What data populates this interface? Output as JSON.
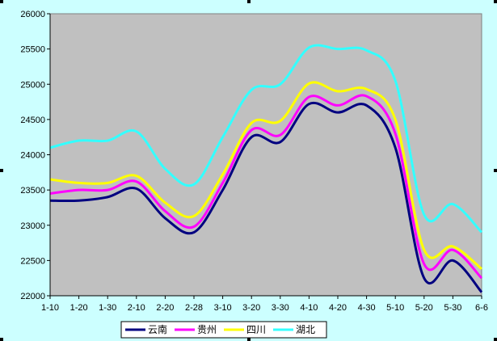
{
  "chart_data": {
    "type": "line",
    "title": "",
    "xlabel": "",
    "ylabel": "",
    "categories": [
      "1-10",
      "1-20",
      "1-30",
      "2-10",
      "2-20",
      "2-28",
      "3-10",
      "3-20",
      "3-30",
      "4-10",
      "4-20",
      "4-30",
      "5-10",
      "5-20",
      "5-30",
      "6-6"
    ],
    "ylim": [
      22000,
      26000
    ],
    "yticks": [
      22000,
      22500,
      23000,
      23500,
      24000,
      24500,
      25000,
      25500,
      26000
    ],
    "series": [
      {
        "name": "云南",
        "color": "#000080",
        "values": [
          23350,
          23350,
          23400,
          23520,
          23100,
          22900,
          23500,
          24250,
          24180,
          24720,
          24600,
          24700,
          24100,
          22250,
          22500,
          22050
        ]
      },
      {
        "name": "贵州",
        "color": "#ff00ff",
        "values": [
          23450,
          23500,
          23500,
          23620,
          23200,
          22980,
          23600,
          24350,
          24280,
          24820,
          24700,
          24830,
          24300,
          22450,
          22650,
          22250
        ]
      },
      {
        "name": "四川",
        "color": "#ffff00",
        "values": [
          23650,
          23600,
          23600,
          23700,
          23320,
          23130,
          23720,
          24450,
          24480,
          25010,
          24900,
          24930,
          24500,
          22650,
          22700,
          22380
        ]
      },
      {
        "name": "湖北",
        "color": "#33ffff",
        "values": [
          24100,
          24200,
          24200,
          24330,
          23800,
          23580,
          24250,
          24920,
          25000,
          25520,
          25500,
          25480,
          25050,
          23150,
          23300,
          22900
        ]
      }
    ],
    "grid": false,
    "plot_background": "#c0c0c0",
    "legend_position": "bottom"
  }
}
